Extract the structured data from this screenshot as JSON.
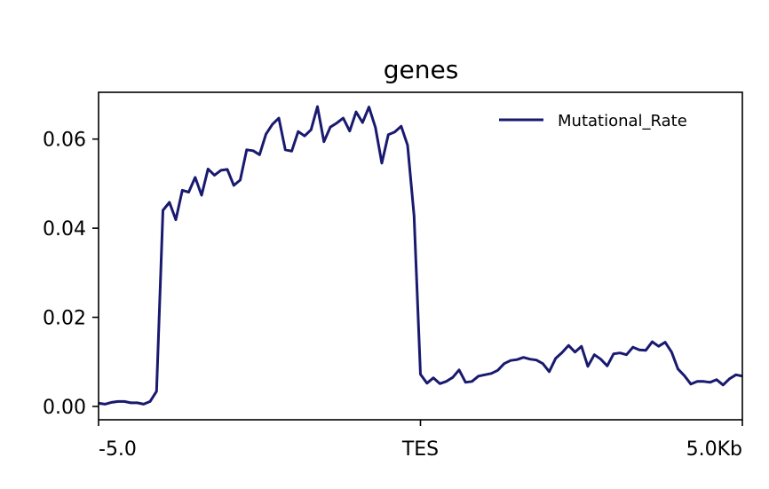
{
  "chart_data": {
    "type": "line",
    "title": "genes",
    "xlabel": "",
    "ylabel": "",
    "xlim": [
      -5.0,
      5.0
    ],
    "ylim": [
      -0.003,
      0.0705
    ],
    "x_ticks": [
      {
        "value": -5.0,
        "label": "-5.0"
      },
      {
        "value": 0.0,
        "label": "TES"
      },
      {
        "value": 5.0,
        "label": "5.0Kb"
      }
    ],
    "y_ticks": [
      {
        "value": 0.0,
        "label": "0.00"
      },
      {
        "value": 0.02,
        "label": "0.02"
      },
      {
        "value": 0.04,
        "label": "0.04"
      },
      {
        "value": 0.06,
        "label": "0.06"
      }
    ],
    "grid": false,
    "legend": {
      "position": "top-right"
    },
    "series": [
      {
        "name": "Mutational_Rate",
        "color": "#191970",
        "x": [
          -5.0,
          -4.9,
          -4.8,
          -4.7,
          -4.6,
          -4.5,
          -4.4,
          -4.3,
          -4.2,
          -4.1,
          -4.0,
          -3.9,
          -3.8,
          -3.7,
          -3.6,
          -3.5,
          -3.4,
          -3.3,
          -3.2,
          -3.1,
          -3.0,
          -2.9,
          -2.8,
          -2.7,
          -2.6,
          -2.5,
          -2.4,
          -2.3,
          -2.2,
          -2.1,
          -2.0,
          -1.9,
          -1.8,
          -1.7,
          -1.6,
          -1.5,
          -1.4,
          -1.3,
          -1.2,
          -1.1,
          -1.0,
          -0.9,
          -0.8,
          -0.7,
          -0.6,
          -0.5,
          -0.4,
          -0.3,
          -0.2,
          -0.1,
          0.0,
          0.1,
          0.2,
          0.3,
          0.4,
          0.5,
          0.6,
          0.7,
          0.8,
          0.9,
          1.0,
          1.1,
          1.2,
          1.3,
          1.4,
          1.5,
          1.6,
          1.7,
          1.8,
          1.9,
          2.0,
          2.1,
          2.2,
          2.3,
          2.4,
          2.5,
          2.6,
          2.7,
          2.8,
          2.9,
          3.0,
          3.1,
          3.2,
          3.3,
          3.4,
          3.5,
          3.6,
          3.7,
          3.8,
          3.9,
          4.0,
          4.1,
          4.2,
          4.3,
          4.4,
          4.5,
          4.6,
          4.7,
          4.8,
          4.9,
          5.0
        ],
        "y": [
          0.0007,
          0.0005,
          0.0009,
          0.0011,
          0.0011,
          0.0008,
          0.0008,
          0.0005,
          0.0011,
          0.0034,
          0.044,
          0.0458,
          0.0419,
          0.0485,
          0.0481,
          0.0514,
          0.0474,
          0.0533,
          0.0519,
          0.053,
          0.0532,
          0.0496,
          0.0508,
          0.0576,
          0.0574,
          0.0565,
          0.0611,
          0.0633,
          0.0647,
          0.0576,
          0.0573,
          0.0617,
          0.0607,
          0.0621,
          0.0673,
          0.0594,
          0.0627,
          0.0636,
          0.0647,
          0.0618,
          0.0661,
          0.0637,
          0.0672,
          0.0626,
          0.0546,
          0.061,
          0.0616,
          0.0629,
          0.0586,
          0.0428,
          0.0072,
          0.0052,
          0.0064,
          0.0051,
          0.0056,
          0.0065,
          0.0082,
          0.0054,
          0.0056,
          0.0068,
          0.0071,
          0.0074,
          0.0081,
          0.0096,
          0.0103,
          0.0105,
          0.011,
          0.0106,
          0.0104,
          0.0096,
          0.0078,
          0.0108,
          0.0121,
          0.0137,
          0.0122,
          0.0135,
          0.009,
          0.0116,
          0.0106,
          0.0091,
          0.0118,
          0.012,
          0.0116,
          0.0133,
          0.0127,
          0.0126,
          0.0145,
          0.0135,
          0.0144,
          0.0122,
          0.0084,
          0.0069,
          0.005,
          0.0056,
          0.0056,
          0.0054,
          0.006,
          0.0048,
          0.0062,
          0.0071,
          0.0068
        ]
      }
    ]
  }
}
